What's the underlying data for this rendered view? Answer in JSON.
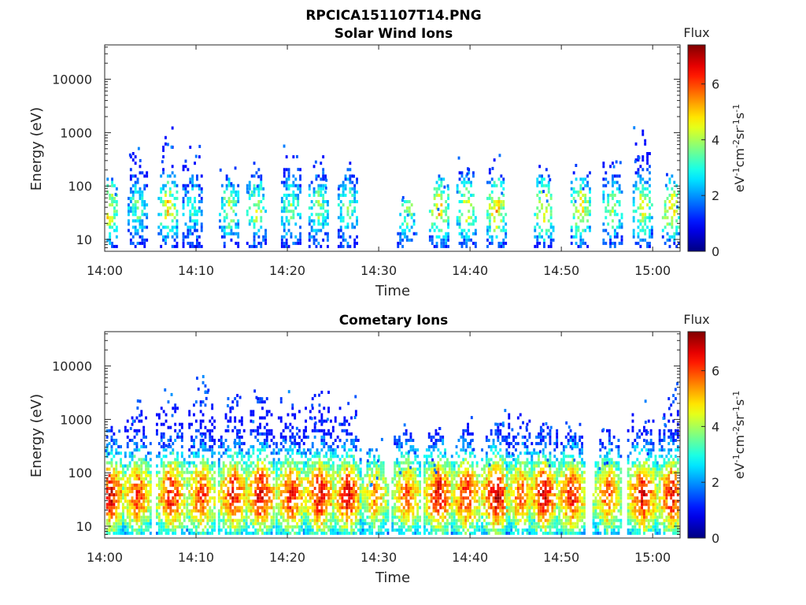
{
  "figure": {
    "filename": "RPCICA151107T14.PNG"
  },
  "chart_data": [
    {
      "type": "heatmap",
      "title": "Solar Wind Ions",
      "xlabel": "Time",
      "ylabel": "Energy (eV)",
      "yscale": "log",
      "xlim_minutes": [
        0,
        63
      ],
      "ylim": [
        6,
        44000
      ],
      "xticks": [
        "14:00",
        "14:10",
        "14:20",
        "14:30",
        "14:40",
        "14:50",
        "15:00"
      ],
      "xtick_minutes": [
        0,
        10,
        20,
        30,
        40,
        50,
        60
      ],
      "yticks": [
        "10",
        "100",
        "1000",
        "10000"
      ],
      "ytick_values": [
        10,
        100,
        1000,
        10000
      ],
      "colorbar": {
        "title": "Flux",
        "label": "eV-1cm-2sr-1s-1",
        "range": [
          0,
          7.4
        ],
        "ticks": [
          "0",
          "2",
          "4",
          "6"
        ],
        "tick_values": [
          0,
          2,
          4,
          6
        ]
      },
      "bursts": [
        {
          "minute": 0.2,
          "max_energy": 200,
          "peak_flux": 5.0
        },
        {
          "minute": 3.5,
          "max_energy": 400,
          "peak_flux": 3.5
        },
        {
          "minute": 6.8,
          "max_energy": 1500,
          "peak_flux": 4.8
        },
        {
          "minute": 9.5,
          "max_energy": 700,
          "peak_flux": 3.0
        },
        {
          "minute": 13.5,
          "max_energy": 180,
          "peak_flux": 4.0
        },
        {
          "minute": 16.5,
          "max_energy": 300,
          "peak_flux": 4.2
        },
        {
          "minute": 20.3,
          "max_energy": 400,
          "peak_flux": 3.8
        },
        {
          "minute": 23.3,
          "max_energy": 400,
          "peak_flux": 3.9
        },
        {
          "minute": 26.5,
          "max_energy": 300,
          "peak_flux": 3.8
        },
        {
          "minute": 33.0,
          "max_energy": 60,
          "peak_flux": 4.0
        },
        {
          "minute": 36.5,
          "max_energy": 150,
          "peak_flux": 5.0
        },
        {
          "minute": 39.5,
          "max_energy": 300,
          "peak_flux": 4.5
        },
        {
          "minute": 42.8,
          "max_energy": 400,
          "peak_flux": 5.2
        },
        {
          "minute": 48.0,
          "max_energy": 250,
          "peak_flux": 5.0
        },
        {
          "minute": 52.0,
          "max_energy": 250,
          "peak_flux": 4.8
        },
        {
          "minute": 55.5,
          "max_energy": 300,
          "peak_flux": 4.0
        },
        {
          "minute": 58.8,
          "max_energy": 1000,
          "peak_flux": 4.5
        },
        {
          "minute": 62.0,
          "max_energy": 150,
          "peak_flux": 5.0
        }
      ]
    },
    {
      "type": "heatmap",
      "title": "Cometary Ions",
      "xlabel": "Time",
      "ylabel": "Energy (eV)",
      "yscale": "log",
      "xlim_minutes": [
        0,
        63
      ],
      "ylim": [
        6,
        44000
      ],
      "xticks": [
        "14:00",
        "14:10",
        "14:20",
        "14:30",
        "14:40",
        "14:50",
        "15:00"
      ],
      "xtick_minutes": [
        0,
        10,
        20,
        30,
        40,
        50,
        60
      ],
      "yticks": [
        "10",
        "100",
        "1000",
        "10000"
      ],
      "ytick_values": [
        10,
        100,
        1000,
        10000
      ],
      "colorbar": {
        "title": "Flux",
        "label": "eV-1cm-2sr-1s-1",
        "range": [
          0,
          7.4
        ],
        "ticks": [
          "0",
          "2",
          "4",
          "6"
        ],
        "tick_values": [
          0,
          2,
          4,
          6
        ]
      },
      "bursts": [
        {
          "minute": 0.5,
          "max_energy": 700,
          "peak_flux": 6.8
        },
        {
          "minute": 3.5,
          "max_energy": 1500,
          "peak_flux": 6.2
        },
        {
          "minute": 7.2,
          "max_energy": 2500,
          "peak_flux": 6.6
        },
        {
          "minute": 10.5,
          "max_energy": 5000,
          "peak_flux": 6.3
        },
        {
          "minute": 14.0,
          "max_energy": 3500,
          "peak_flux": 6.6
        },
        {
          "minute": 17.0,
          "max_energy": 2500,
          "peak_flux": 6.8
        },
        {
          "minute": 20.3,
          "max_energy": 2500,
          "peak_flux": 6.5
        },
        {
          "minute": 23.5,
          "max_energy": 4000,
          "peak_flux": 6.8
        },
        {
          "minute": 26.5,
          "max_energy": 2000,
          "peak_flux": 6.7
        },
        {
          "minute": 29.5,
          "max_energy": 300,
          "peak_flux": 5.5
        },
        {
          "minute": 33.0,
          "max_energy": 600,
          "peak_flux": 6.0
        },
        {
          "minute": 36.5,
          "max_energy": 600,
          "peak_flux": 6.8
        },
        {
          "minute": 39.5,
          "max_energy": 800,
          "peak_flux": 6.6
        },
        {
          "minute": 42.8,
          "max_energy": 1000,
          "peak_flux": 7.0
        },
        {
          "minute": 45.5,
          "max_energy": 1200,
          "peak_flux": 6.0
        },
        {
          "minute": 48.0,
          "max_energy": 800,
          "peak_flux": 6.9
        },
        {
          "minute": 51.0,
          "max_energy": 600,
          "peak_flux": 6.5
        },
        {
          "minute": 55.0,
          "max_energy": 600,
          "peak_flux": 6.0
        },
        {
          "minute": 58.8,
          "max_energy": 1500,
          "peak_flux": 6.8
        },
        {
          "minute": 62.0,
          "max_energy": 3500,
          "peak_flux": 6.6
        }
      ]
    }
  ]
}
